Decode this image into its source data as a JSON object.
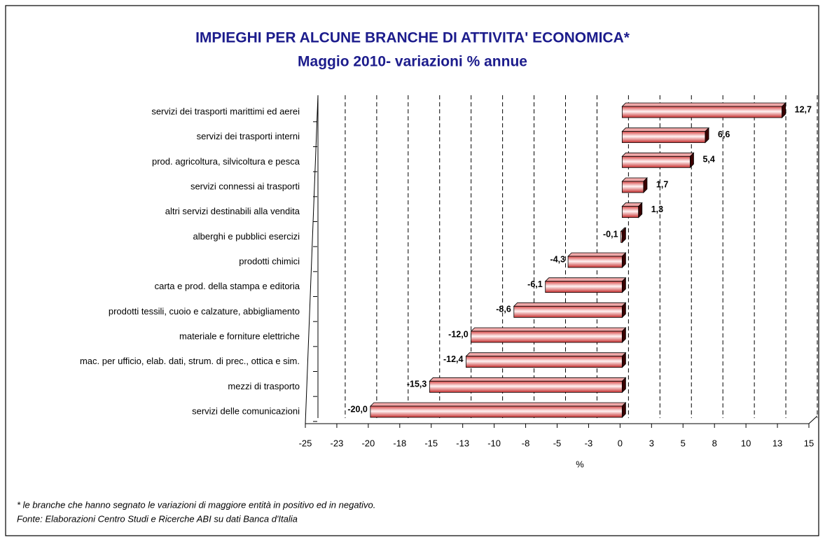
{
  "chart_data": {
    "type": "bar",
    "orientation": "horizontal",
    "title": "IMPIEGHI PER ALCUNE BRANCHE DI ATTIVITA' ECONOMICA*",
    "subtitle": "Maggio 2010- variazioni % annue",
    "x_label": "%",
    "categories": [
      "servizi dei trasporti marittimi ed aerei",
      "servizi dei trasporti interni",
      "prod. agricoltura, silvicoltura e pesca",
      "servizi connessi ai trasporti",
      "altri servizi destinabili alla vendita",
      "alberghi e pubblici esercizi",
      "prodotti chimici",
      "carta e prod. della stampa e editoria",
      "prodotti tessili, cuoio e calzature, abbigliamento",
      "materiale e forniture elettriche",
      "mac. per ufficio, elab. dati, strum. di prec., ottica e sim.",
      "mezzi di trasporto",
      "servizi delle comunicazioni"
    ],
    "values": [
      12.7,
      6.6,
      5.4,
      1.7,
      1.3,
      -0.1,
      -4.3,
      -6.1,
      -8.6,
      -12.0,
      -12.4,
      -15.3,
      -20.0
    ],
    "value_labels": [
      "12,7",
      "6,6",
      "5,4",
      "1,7",
      "1,3",
      "-0,1",
      "-4,3",
      "-6,1",
      "-8,6",
      "-12,0",
      "-12,4",
      "-15,3",
      "-20,0"
    ],
    "color": "#e05050",
    "xlim": [
      -25,
      15
    ],
    "xticks": [
      -25,
      {
        "value": -22.5,
        "label": "-23"
      },
      -20,
      {
        "value": -17.5,
        "label": "-18"
      },
      -15,
      {
        "value": -12.5,
        "label": "-13"
      },
      -10,
      {
        "value": -7.5,
        "label": "-8"
      },
      -5,
      {
        "value": -2.5,
        "label": "-3"
      },
      0,
      {
        "value": 2.5,
        "label": "3"
      },
      5,
      {
        "value": 7.5,
        "label": "8"
      },
      10,
      {
        "value": 12.5,
        "label": "13"
      },
      15
    ],
    "grid": true,
    "notes": [
      "* le branche che hanno segnato le variazioni di maggiore entità in positivo ed  in negativo.",
      "Fonte: Elaborazioni Centro Studi e Ricerche ABI su dati Banca d'Italia"
    ]
  }
}
